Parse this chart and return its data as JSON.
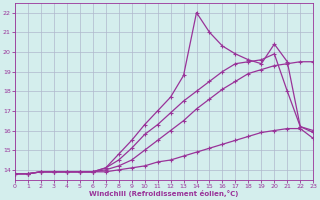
{
  "title": "",
  "xlabel": "Windchill (Refroidissement éolien,°C)",
  "background_color": "#d4eeed",
  "grid_color": "#b0b8cc",
  "line_color": "#993399",
  "xlim": [
    0,
    23
  ],
  "ylim": [
    13.5,
    22.5
  ],
  "xticks": [
    0,
    1,
    2,
    3,
    4,
    5,
    6,
    7,
    8,
    9,
    10,
    11,
    12,
    13,
    14,
    15,
    16,
    17,
    18,
    19,
    20,
    21,
    22,
    23
  ],
  "yticks": [
    14,
    15,
    16,
    17,
    18,
    19,
    20,
    21,
    22
  ],
  "series": [
    {
      "x": [
        0,
        1,
        2,
        3,
        4,
        5,
        6,
        7,
        8,
        9,
        10,
        11,
        12,
        13,
        14,
        15,
        16,
        17,
        18,
        19,
        20,
        21,
        22,
        23
      ],
      "y": [
        13.8,
        13.8,
        13.9,
        13.9,
        13.9,
        13.9,
        13.9,
        13.9,
        14.0,
        14.1,
        14.2,
        14.4,
        14.5,
        14.7,
        14.9,
        15.1,
        15.3,
        15.5,
        15.7,
        15.9,
        16.0,
        16.1,
        16.1,
        15.6
      ],
      "marker": "+",
      "linestyle": "-",
      "linewidth": 0.9
    },
    {
      "x": [
        0,
        1,
        2,
        3,
        4,
        5,
        6,
        7,
        8,
        9,
        10,
        11,
        12,
        13,
        14,
        15,
        16,
        17,
        18,
        19,
        20,
        21,
        22,
        23
      ],
      "y": [
        13.8,
        13.8,
        13.9,
        13.9,
        13.9,
        13.9,
        13.9,
        14.0,
        14.2,
        14.5,
        15.0,
        15.5,
        16.0,
        16.5,
        17.1,
        17.6,
        18.1,
        18.5,
        18.9,
        19.1,
        19.3,
        19.4,
        19.5,
        19.5
      ],
      "marker": "+",
      "linestyle": "-",
      "linewidth": 0.9
    },
    {
      "x": [
        0,
        1,
        2,
        3,
        4,
        5,
        6,
        7,
        8,
        9,
        10,
        11,
        12,
        13,
        14,
        15,
        16,
        17,
        18,
        19,
        20,
        21,
        22,
        23
      ],
      "y": [
        13.8,
        13.8,
        13.9,
        13.9,
        13.9,
        13.9,
        13.9,
        14.1,
        14.5,
        15.1,
        15.8,
        16.3,
        16.9,
        17.5,
        18.0,
        18.5,
        19.0,
        19.4,
        19.5,
        19.6,
        19.9,
        18.0,
        16.2,
        15.9
      ],
      "marker": "+",
      "linestyle": "-",
      "linewidth": 0.9
    },
    {
      "x": [
        0,
        1,
        2,
        3,
        4,
        5,
        6,
        7,
        8,
        9,
        10,
        11,
        12,
        13,
        14,
        15,
        16,
        17,
        18,
        19,
        20,
        21,
        22,
        23
      ],
      "y": [
        13.8,
        13.8,
        13.9,
        13.9,
        13.9,
        13.9,
        13.9,
        14.1,
        14.8,
        15.5,
        16.3,
        17.0,
        17.7,
        18.8,
        22.0,
        21.0,
        20.3,
        19.9,
        19.6,
        19.4,
        20.4,
        19.5,
        16.2,
        16.0
      ],
      "marker": "+",
      "linestyle": "-",
      "linewidth": 0.9
    }
  ]
}
